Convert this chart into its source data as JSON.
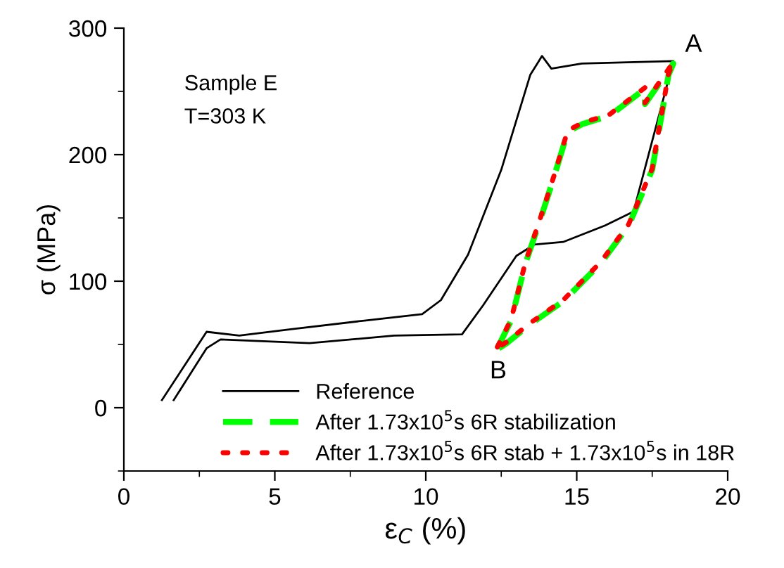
{
  "chart_data": {
    "type": "line",
    "xlabel": "ε$_{C}$ (%)",
    "ylabel": "σ (MPa)",
    "xlim": [
      0,
      20
    ],
    "xticks": [
      0,
      5,
      10,
      15,
      20
    ],
    "ylim": [
      -50,
      300
    ],
    "yticks": [
      0,
      100,
      200,
      300
    ],
    "grid": false,
    "legend": "bottom right",
    "marker": "none",
    "annotations": [
      "Sample E",
      "T=303 K",
      {
        "text": "A",
        "x": 18.2,
        "y": 274
      },
      {
        "text": "B",
        "x": 12.4,
        "y": 47
      }
    ],
    "series": [
      {
        "name": "Reference",
        "color": "#000000",
        "line_style": "solid",
        "x": [
          1.26,
          2.74,
          3.82,
          5.53,
          8.02,
          9.88,
          10.5,
          11.4,
          12.5,
          13.46,
          13.85,
          14.16,
          15.17,
          18.2,
          16.88,
          15.94,
          14.55,
          13.6,
          13.0,
          11.9,
          11.2,
          8.95,
          6.15,
          3.2,
          2.74,
          1.65
        ],
        "values": [
          6,
          60,
          57,
          62,
          69,
          74,
          85,
          121,
          188,
          263,
          278,
          268,
          272,
          274,
          155,
          144,
          131,
          129,
          120,
          81,
          58,
          57,
          51,
          54,
          47,
          6
        ]
      },
      {
        "name": "After 1.73x10$^{5}$s 6R stabilization",
        "color": "#00ff00",
        "line_style": "dashed",
        "x": [
          12.37,
          12.83,
          13.3,
          13.77,
          14.23,
          14.7,
          15.17,
          16.1,
          17.26,
          17.26,
          18.2,
          18.04,
          17.5,
          16.72,
          15.79,
          14.55,
          13.46,
          12.68,
          12.42
        ],
        "values": [
          47,
          69,
          114,
          147,
          181,
          218,
          224,
          231,
          252,
          240,
          272,
          263,
          188,
          144,
          114,
          84,
          66,
          51,
          47
        ]
      },
      {
        "name": "After 1.73x10$^{5}$s 6R stab + 1.73x10$^{5}$s in 18R",
        "color": "#ff0000",
        "line_style": "dotted",
        "x": [
          12.37,
          12.83,
          13.3,
          13.77,
          14.23,
          14.7,
          15.17,
          16.1,
          17.26,
          17.26,
          18.2,
          18.04,
          17.5,
          16.72,
          15.79,
          14.55,
          13.46,
          12.68,
          12.42
        ],
        "values": [
          48,
          70,
          115,
          148,
          182,
          219,
          225,
          232,
          253,
          241,
          273,
          264,
          189,
          145,
          115,
          85,
          67,
          52,
          48
        ]
      }
    ]
  }
}
